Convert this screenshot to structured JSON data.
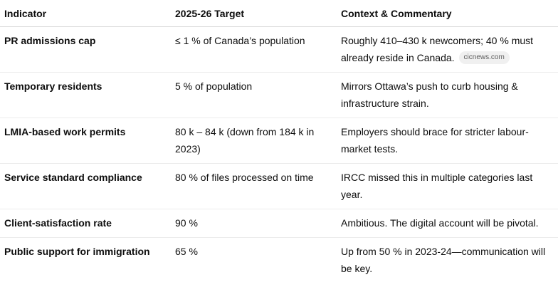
{
  "table": {
    "headers": [
      "Indicator",
      "2025-26 Target",
      "Context & Commentary"
    ],
    "rows": [
      {
        "indicator": "PR admissions cap",
        "target": "≤ 1 % of Canada’s population",
        "context": "Roughly 410–430 k newcomers; 40 % must already reside in Canada.",
        "source": "cicnews.com"
      },
      {
        "indicator": "Temporary residents",
        "target": "5 % of population",
        "context": "Mirrors Ottawa’s push to curb housing & infrastructure strain."
      },
      {
        "indicator": "LMIA-based work permits",
        "target": "80 k – 84 k (down from 184 k in 2023)",
        "context": "Employers should brace for stricter labour-market tests."
      },
      {
        "indicator": "Service standard compliance",
        "target": "80 % of files processed on time",
        "context": "IRCC missed this in multiple categories last year."
      },
      {
        "indicator": "Client-satisfaction rate",
        "target": "90 %",
        "context": "Ambitious. The digital account will be pivotal."
      },
      {
        "indicator": "Public support for immigration",
        "target": "65 %",
        "context": "Up from 50 % in 2023-24—communication will be key."
      }
    ]
  }
}
